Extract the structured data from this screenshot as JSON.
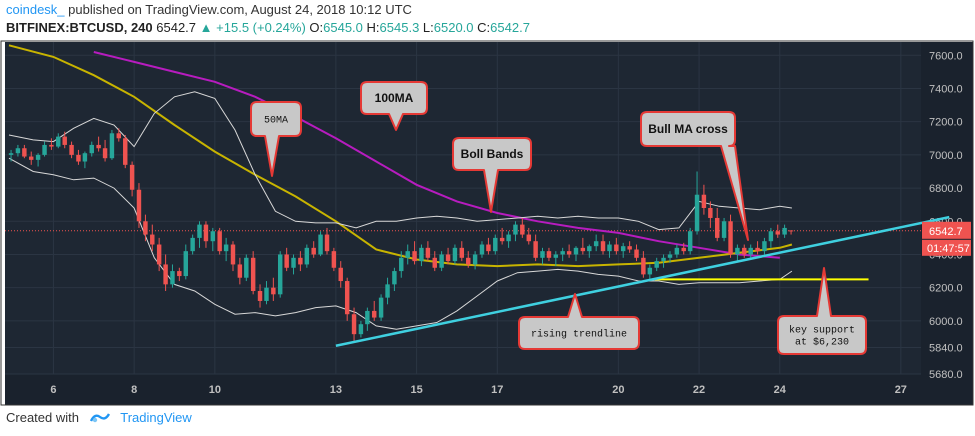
{
  "header": {
    "author": "coindesk_",
    "published": "published on TradingView.com, August 24, 2018 10:12 UTC",
    "symbol": "BITFINEX:BTCUSD, 240",
    "last": "6542.7",
    "change": "+15.5 (+0.24%)",
    "open_label": "O:",
    "open": "6545.0",
    "high_label": "H:",
    "high": "6545.3",
    "low_label": "L:",
    "low": "6520.0",
    "close_label": "C:",
    "close": "6542.7"
  },
  "footer": {
    "created_with": "Created with",
    "brand": "TradingView"
  },
  "colors": {
    "background": "#1e2733",
    "grid": "#2b3543",
    "up": "#26a69a",
    "down": "#ef5350",
    "ma50": "#c8b400",
    "ma100": "#b71cbf",
    "boll": "#d8d8d8",
    "trendline": "#3fd0e0",
    "support": "#ffff00",
    "annotation_border": "#e53935",
    "annotation_fill": "#c8c8c8",
    "axis_text": "#c0c0c0",
    "price_tag": "#ef5350"
  },
  "chart_data": {
    "type": "candlestick",
    "ylim": [
      5680,
      7680
    ],
    "xlim": [
      4.8,
      27.5
    ],
    "yticks": [
      "5680.0",
      "5840.0",
      "6000.0",
      "6200.0",
      "6400.0",
      "6600.0",
      "6800.0",
      "7000.0",
      "7200.0",
      "7400.0",
      "7600.0"
    ],
    "ytick_values": [
      5680,
      5840,
      6000,
      6200,
      6400,
      6600,
      6800,
      7000,
      7200,
      7400,
      7600
    ],
    "xticks": [
      "6",
      "8",
      "10",
      "13",
      "15",
      "17",
      "20",
      "22",
      "24",
      "27"
    ],
    "xtick_values": [
      6,
      8,
      10,
      13,
      15,
      17,
      20,
      22,
      24,
      27
    ],
    "last_price_label": "6542.7",
    "countdown_label": "01:47:57",
    "last_price": 6542.7,
    "annotations": [
      {
        "text": "50MA"
      },
      {
        "text": "100MA"
      },
      {
        "text": "Boll Bands"
      },
      {
        "text": "Bull MA cross"
      },
      {
        "text": "rising trendline"
      },
      {
        "text": "key support\nat $6,230"
      }
    ],
    "trendline": {
      "x": [
        13.0,
        28.2
      ],
      "y": [
        5850,
        6625
      ]
    },
    "support_line": {
      "x": [
        20.9,
        26.2
      ],
      "y": [
        6250,
        6250
      ]
    },
    "series": [
      {
        "name": "",
        "type": "ma",
        "color_key": "ma100",
        "x": [
          7.0,
          8.0,
          9.0,
          10.0,
          11.0,
          12.0,
          13.0,
          14.0,
          15.0,
          16.0,
          17.0,
          18.0,
          19.0,
          20.0,
          21.0,
          22.0,
          23.0,
          24.0
        ],
        "y": [
          7620,
          7560,
          7500,
          7440,
          7350,
          7230,
          7100,
          6960,
          6820,
          6720,
          6650,
          6600,
          6560,
          6530,
          6480,
          6440,
          6400,
          6380
        ]
      },
      {
        "name": "",
        "type": "ma",
        "color_key": "ma50",
        "x": [
          4.9,
          6.0,
          7.0,
          8.0,
          9.0,
          10.0,
          11.0,
          12.0,
          13.0,
          14.0,
          15.0,
          16.0,
          17.0,
          18.0,
          19.0,
          20.0,
          21.0,
          22.0,
          23.0,
          24.0,
          24.3
        ],
        "y": [
          7660,
          7590,
          7480,
          7350,
          7180,
          7020,
          6880,
          6750,
          6600,
          6430,
          6370,
          6340,
          6330,
          6340,
          6330,
          6340,
          6350,
          6380,
          6410,
          6440,
          6460
        ]
      },
      {
        "name": "",
        "type": "band",
        "color_key": "boll",
        "x": [
          4.9,
          5.5,
          6.0,
          6.5,
          7.0,
          7.5,
          8.0,
          8.5,
          9.0,
          9.5,
          10.0,
          10.5,
          11.0,
          11.5,
          12.0,
          12.5,
          13.0,
          13.5,
          14.0,
          14.5,
          15.0,
          15.5,
          16.0,
          16.5,
          17.0,
          17.5,
          18.0,
          18.5,
          19.0,
          19.5,
          20.0,
          20.5,
          21.0,
          21.5,
          22.0,
          22.5,
          23.0,
          23.5,
          24.0,
          24.3
        ],
        "y": [
          7120,
          7090,
          7080,
          7160,
          7220,
          7180,
          7050,
          7250,
          7350,
          7380,
          7340,
          7150,
          6880,
          6660,
          6600,
          6590,
          6590,
          6560,
          6600,
          6600,
          6620,
          6630,
          6620,
          6600,
          6610,
          6620,
          6630,
          6620,
          6630,
          6620,
          6620,
          6600,
          6550,
          6560,
          6720,
          6690,
          6680,
          6670,
          6690,
          6680
        ]
      },
      {
        "name": "",
        "type": "band",
        "color_key": "boll",
        "x": [
          4.9,
          5.5,
          6.0,
          6.5,
          7.0,
          7.5,
          8.0,
          8.5,
          9.0,
          9.5,
          10.0,
          10.5,
          11.0,
          11.5,
          12.0,
          12.5,
          13.0,
          13.5,
          14.0,
          14.5,
          15.0,
          15.5,
          16.0,
          16.5,
          17.0,
          17.5,
          18.0,
          18.5,
          19.0,
          19.5,
          20.0,
          20.5,
          21.0,
          21.5,
          22.0,
          22.5,
          23.0,
          23.5,
          24.0,
          24.3
        ],
        "y": [
          6980,
          6900,
          6880,
          6850,
          6860,
          6800,
          6680,
          6380,
          6220,
          6180,
          6100,
          6040,
          6050,
          6030,
          6050,
          6080,
          6090,
          6050,
          5970,
          5950,
          5970,
          5990,
          6060,
          6150,
          6240,
          6290,
          6300,
          6310,
          6300,
          6280,
          6270,
          6240,
          6240,
          6220,
          6230,
          6230,
          6230,
          6240,
          6250,
          6300
        ]
      }
    ],
    "candles": [
      {
        "x": 4.95,
        "o": 7000,
        "h": 7030,
        "l": 6960,
        "c": 7010
      },
      {
        "x": 5.12,
        "o": 7010,
        "h": 7060,
        "l": 6990,
        "c": 7040
      },
      {
        "x": 5.28,
        "o": 7040,
        "h": 7060,
        "l": 6980,
        "c": 6990
      },
      {
        "x": 5.45,
        "o": 6990,
        "h": 7020,
        "l": 6940,
        "c": 6970
      },
      {
        "x": 5.62,
        "o": 6970,
        "h": 7010,
        "l": 6930,
        "c": 7000
      },
      {
        "x": 5.78,
        "o": 7000,
        "h": 7080,
        "l": 6990,
        "c": 7060
      },
      {
        "x": 5.95,
        "o": 7060,
        "h": 7100,
        "l": 7030,
        "c": 7050
      },
      {
        "x": 6.12,
        "o": 7050,
        "h": 7130,
        "l": 7040,
        "c": 7110
      },
      {
        "x": 6.28,
        "o": 7110,
        "h": 7140,
        "l": 7040,
        "c": 7060
      },
      {
        "x": 6.45,
        "o": 7060,
        "h": 7080,
        "l": 6980,
        "c": 7000
      },
      {
        "x": 6.62,
        "o": 7000,
        "h": 7030,
        "l": 6940,
        "c": 6960
      },
      {
        "x": 6.78,
        "o": 6960,
        "h": 7020,
        "l": 6920,
        "c": 7010
      },
      {
        "x": 6.95,
        "o": 7010,
        "h": 7080,
        "l": 6990,
        "c": 7060
      },
      {
        "x": 7.12,
        "o": 7060,
        "h": 7110,
        "l": 7020,
        "c": 7040
      },
      {
        "x": 7.28,
        "o": 7040,
        "h": 7090,
        "l": 6960,
        "c": 6980
      },
      {
        "x": 7.45,
        "o": 6980,
        "h": 7150,
        "l": 6970,
        "c": 7130
      },
      {
        "x": 7.62,
        "o": 7130,
        "h": 7160,
        "l": 7080,
        "c": 7100
      },
      {
        "x": 7.78,
        "o": 7100,
        "h": 7120,
        "l": 6920,
        "c": 6940
      },
      {
        "x": 7.95,
        "o": 6940,
        "h": 6960,
        "l": 6750,
        "c": 6790
      },
      {
        "x": 8.12,
        "o": 6790,
        "h": 6830,
        "l": 6560,
        "c": 6600
      },
      {
        "x": 8.28,
        "o": 6600,
        "h": 6640,
        "l": 6480,
        "c": 6520
      },
      {
        "x": 8.45,
        "o": 6520,
        "h": 6580,
        "l": 6420,
        "c": 6460
      },
      {
        "x": 8.62,
        "o": 6460,
        "h": 6500,
        "l": 6300,
        "c": 6340
      },
      {
        "x": 8.78,
        "o": 6340,
        "h": 6400,
        "l": 6180,
        "c": 6220
      },
      {
        "x": 8.95,
        "o": 6220,
        "h": 6340,
        "l": 6200,
        "c": 6300
      },
      {
        "x": 9.12,
        "o": 6300,
        "h": 6320,
        "l": 6240,
        "c": 6270
      },
      {
        "x": 9.28,
        "o": 6270,
        "h": 6460,
        "l": 6250,
        "c": 6420
      },
      {
        "x": 9.45,
        "o": 6420,
        "h": 6520,
        "l": 6400,
        "c": 6500
      },
      {
        "x": 9.62,
        "o": 6500,
        "h": 6600,
        "l": 6440,
        "c": 6580
      },
      {
        "x": 9.78,
        "o": 6580,
        "h": 6600,
        "l": 6440,
        "c": 6480
      },
      {
        "x": 9.95,
        "o": 6480,
        "h": 6560,
        "l": 6420,
        "c": 6540
      },
      {
        "x": 10.12,
        "o": 6540,
        "h": 6560,
        "l": 6400,
        "c": 6420
      },
      {
        "x": 10.28,
        "o": 6420,
        "h": 6500,
        "l": 6360,
        "c": 6460
      },
      {
        "x": 10.45,
        "o": 6460,
        "h": 6480,
        "l": 6300,
        "c": 6340
      },
      {
        "x": 10.62,
        "o": 6340,
        "h": 6380,
        "l": 6220,
        "c": 6260
      },
      {
        "x": 10.78,
        "o": 6260,
        "h": 6400,
        "l": 6240,
        "c": 6380
      },
      {
        "x": 10.95,
        "o": 6380,
        "h": 6420,
        "l": 6160,
        "c": 6180
      },
      {
        "x": 11.12,
        "o": 6180,
        "h": 6220,
        "l": 6080,
        "c": 6120
      },
      {
        "x": 11.28,
        "o": 6120,
        "h": 6240,
        "l": 6100,
        "c": 6200
      },
      {
        "x": 11.45,
        "o": 6200,
        "h": 6260,
        "l": 6120,
        "c": 6160
      },
      {
        "x": 11.62,
        "o": 6160,
        "h": 6420,
        "l": 6140,
        "c": 6400
      },
      {
        "x": 11.78,
        "o": 6400,
        "h": 6440,
        "l": 6300,
        "c": 6320
      },
      {
        "x": 11.95,
        "o": 6320,
        "h": 6400,
        "l": 6280,
        "c": 6380
      },
      {
        "x": 12.12,
        "o": 6380,
        "h": 6420,
        "l": 6300,
        "c": 6340
      },
      {
        "x": 12.28,
        "o": 6340,
        "h": 6460,
        "l": 6320,
        "c": 6440
      },
      {
        "x": 12.45,
        "o": 6440,
        "h": 6480,
        "l": 6380,
        "c": 6400
      },
      {
        "x": 12.62,
        "o": 6400,
        "h": 6540,
        "l": 6390,
        "c": 6520
      },
      {
        "x": 12.78,
        "o": 6520,
        "h": 6560,
        "l": 6400,
        "c": 6420
      },
      {
        "x": 12.95,
        "o": 6420,
        "h": 6440,
        "l": 6300,
        "c": 6320
      },
      {
        "x": 13.12,
        "o": 6320,
        "h": 6360,
        "l": 6200,
        "c": 6240
      },
      {
        "x": 13.28,
        "o": 6240,
        "h": 6260,
        "l": 6000,
        "c": 6040
      },
      {
        "x": 13.45,
        "o": 6040,
        "h": 6080,
        "l": 5880,
        "c": 5920
      },
      {
        "x": 13.62,
        "o": 5920,
        "h": 6000,
        "l": 5900,
        "c": 5980
      },
      {
        "x": 13.78,
        "o": 5980,
        "h": 6080,
        "l": 5940,
        "c": 6060
      },
      {
        "x": 13.95,
        "o": 6060,
        "h": 6120,
        "l": 6000,
        "c": 6020
      },
      {
        "x": 14.12,
        "o": 6020,
        "h": 6160,
        "l": 6000,
        "c": 6140
      },
      {
        "x": 14.28,
        "o": 6140,
        "h": 6260,
        "l": 6100,
        "c": 6220
      },
      {
        "x": 14.45,
        "o": 6220,
        "h": 6320,
        "l": 6180,
        "c": 6300
      },
      {
        "x": 14.62,
        "o": 6300,
        "h": 6420,
        "l": 6260,
        "c": 6380
      },
      {
        "x": 14.78,
        "o": 6380,
        "h": 6460,
        "l": 6340,
        "c": 6420
      },
      {
        "x": 14.95,
        "o": 6420,
        "h": 6480,
        "l": 6340,
        "c": 6360
      },
      {
        "x": 15.12,
        "o": 6360,
        "h": 6460,
        "l": 6330,
        "c": 6440
      },
      {
        "x": 15.28,
        "o": 6440,
        "h": 6480,
        "l": 6360,
        "c": 6380
      },
      {
        "x": 15.45,
        "o": 6380,
        "h": 6420,
        "l": 6300,
        "c": 6320
      },
      {
        "x": 15.62,
        "o": 6320,
        "h": 6420,
        "l": 6300,
        "c": 6400
      },
      {
        "x": 15.78,
        "o": 6400,
        "h": 6440,
        "l": 6340,
        "c": 6360
      },
      {
        "x": 15.95,
        "o": 6360,
        "h": 6460,
        "l": 6340,
        "c": 6440
      },
      {
        "x": 16.12,
        "o": 6440,
        "h": 6480,
        "l": 6360,
        "c": 6380
      },
      {
        "x": 16.28,
        "o": 6380,
        "h": 6420,
        "l": 6320,
        "c": 6340
      },
      {
        "x": 16.45,
        "o": 6340,
        "h": 6420,
        "l": 6310,
        "c": 6400
      },
      {
        "x": 16.62,
        "o": 6400,
        "h": 6480,
        "l": 6380,
        "c": 6460
      },
      {
        "x": 16.78,
        "o": 6460,
        "h": 6500,
        "l": 6400,
        "c": 6420
      },
      {
        "x": 16.95,
        "o": 6420,
        "h": 6520,
        "l": 6400,
        "c": 6500
      },
      {
        "x": 17.12,
        "o": 6500,
        "h": 6560,
        "l": 6460,
        "c": 6480
      },
      {
        "x": 17.28,
        "o": 6480,
        "h": 6540,
        "l": 6440,
        "c": 6520
      },
      {
        "x": 17.45,
        "o": 6520,
        "h": 6600,
        "l": 6480,
        "c": 6580
      },
      {
        "x": 17.62,
        "o": 6580,
        "h": 6620,
        "l": 6500,
        "c": 6520
      },
      {
        "x": 17.78,
        "o": 6520,
        "h": 6560,
        "l": 6460,
        "c": 6480
      },
      {
        "x": 17.95,
        "o": 6480,
        "h": 6520,
        "l": 6360,
        "c": 6380
      },
      {
        "x": 18.12,
        "o": 6380,
        "h": 6440,
        "l": 6340,
        "c": 6420
      },
      {
        "x": 18.28,
        "o": 6420,
        "h": 6440,
        "l": 6360,
        "c": 6380
      },
      {
        "x": 18.45,
        "o": 6380,
        "h": 6420,
        "l": 6330,
        "c": 6400
      },
      {
        "x": 18.62,
        "o": 6400,
        "h": 6440,
        "l": 6360,
        "c": 6420
      },
      {
        "x": 18.78,
        "o": 6420,
        "h": 6460,
        "l": 6380,
        "c": 6400
      },
      {
        "x": 18.95,
        "o": 6400,
        "h": 6450,
        "l": 6360,
        "c": 6440
      },
      {
        "x": 19.12,
        "o": 6440,
        "h": 6500,
        "l": 6400,
        "c": 6420
      },
      {
        "x": 19.28,
        "o": 6420,
        "h": 6460,
        "l": 6380,
        "c": 6450
      },
      {
        "x": 19.45,
        "o": 6450,
        "h": 6520,
        "l": 6420,
        "c": 6480
      },
      {
        "x": 19.62,
        "o": 6480,
        "h": 6520,
        "l": 6400,
        "c": 6420
      },
      {
        "x": 19.78,
        "o": 6420,
        "h": 6480,
        "l": 6380,
        "c": 6460
      },
      {
        "x": 19.95,
        "o": 6460,
        "h": 6500,
        "l": 6400,
        "c": 6420
      },
      {
        "x": 20.12,
        "o": 6420,
        "h": 6470,
        "l": 6380,
        "c": 6450
      },
      {
        "x": 20.28,
        "o": 6450,
        "h": 6480,
        "l": 6410,
        "c": 6430
      },
      {
        "x": 20.45,
        "o": 6430,
        "h": 6460,
        "l": 6360,
        "c": 6380
      },
      {
        "x": 20.62,
        "o": 6380,
        "h": 6420,
        "l": 6260,
        "c": 6280
      },
      {
        "x": 20.78,
        "o": 6280,
        "h": 6340,
        "l": 6250,
        "c": 6320
      },
      {
        "x": 20.95,
        "o": 6320,
        "h": 6380,
        "l": 6300,
        "c": 6360
      },
      {
        "x": 21.12,
        "o": 6360,
        "h": 6400,
        "l": 6320,
        "c": 6380
      },
      {
        "x": 21.28,
        "o": 6380,
        "h": 6420,
        "l": 6350,
        "c": 6400
      },
      {
        "x": 21.45,
        "o": 6400,
        "h": 6460,
        "l": 6380,
        "c": 6440
      },
      {
        "x": 21.62,
        "o": 6440,
        "h": 6470,
        "l": 6400,
        "c": 6420
      },
      {
        "x": 21.78,
        "o": 6420,
        "h": 6560,
        "l": 6400,
        "c": 6540
      },
      {
        "x": 21.95,
        "o": 6540,
        "h": 6900,
        "l": 6520,
        "c": 6760
      },
      {
        "x": 22.12,
        "o": 6760,
        "h": 6820,
        "l": 6640,
        "c": 6680
      },
      {
        "x": 22.28,
        "o": 6680,
        "h": 6720,
        "l": 6560,
        "c": 6620
      },
      {
        "x": 22.45,
        "o": 6620,
        "h": 6680,
        "l": 6480,
        "c": 6500
      },
      {
        "x": 22.62,
        "o": 6500,
        "h": 6620,
        "l": 6480,
        "c": 6600
      },
      {
        "x": 22.78,
        "o": 6600,
        "h": 6640,
        "l": 6380,
        "c": 6400
      },
      {
        "x": 22.95,
        "o": 6400,
        "h": 6460,
        "l": 6360,
        "c": 6440
      },
      {
        "x": 23.12,
        "o": 6440,
        "h": 6460,
        "l": 6380,
        "c": 6400
      },
      {
        "x": 23.28,
        "o": 6400,
        "h": 6460,
        "l": 6380,
        "c": 6440
      },
      {
        "x": 23.45,
        "o": 6440,
        "h": 6480,
        "l": 6400,
        "c": 6420
      },
      {
        "x": 23.62,
        "o": 6420,
        "h": 6500,
        "l": 6400,
        "c": 6480
      },
      {
        "x": 23.78,
        "o": 6480,
        "h": 6560,
        "l": 6440,
        "c": 6540
      },
      {
        "x": 23.95,
        "o": 6540,
        "h": 6580,
        "l": 6500,
        "c": 6520
      },
      {
        "x": 24.12,
        "o": 6520,
        "h": 6580,
        "l": 6500,
        "c": 6560
      },
      {
        "x": 24.28,
        "o": 6545,
        "h": 6545,
        "l": 6520,
        "c": 6543
      }
    ]
  }
}
